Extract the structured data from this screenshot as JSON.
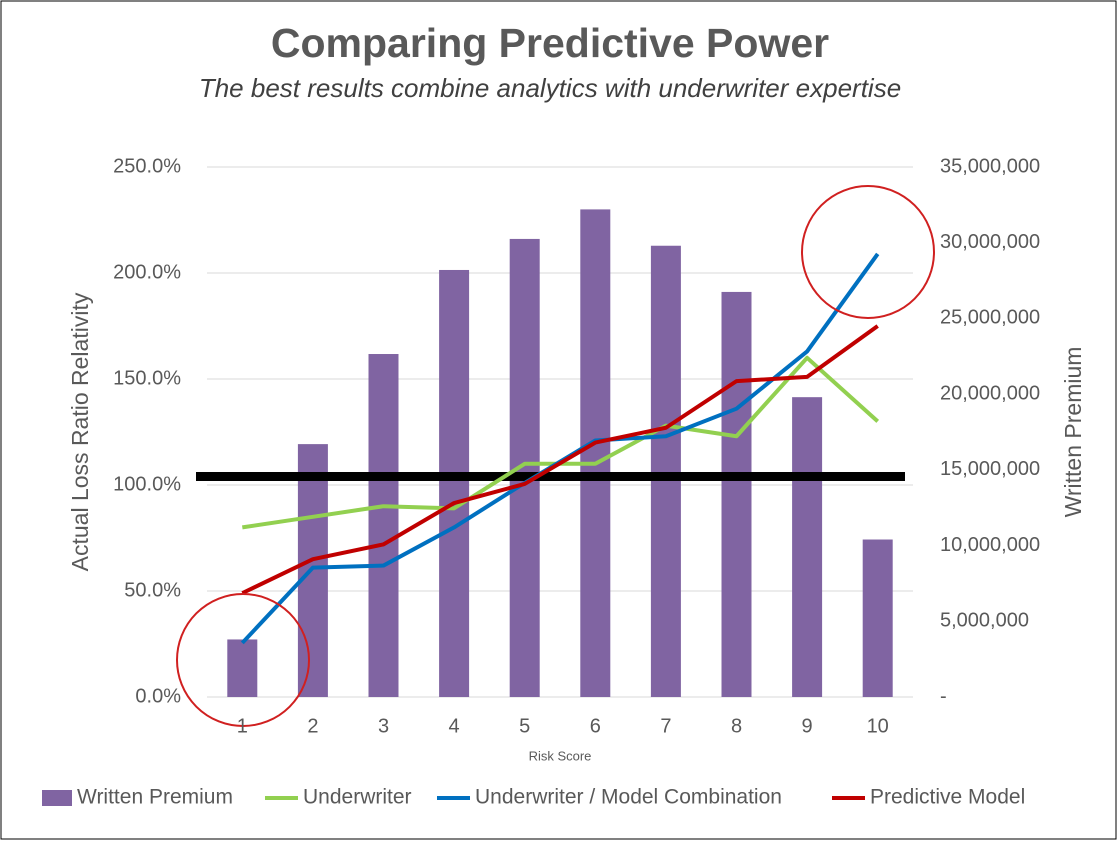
{
  "chart_data": {
    "type": "bar",
    "title": "Comparing Predictive Power",
    "subtitle": "The best results combine analytics with underwriter expertise",
    "x_label": "Risk Score",
    "y_label": "Actual Loss Ratio Relativity",
    "y2_label": "Written Premium",
    "categories": [
      "1",
      "2",
      "3",
      "4",
      "5",
      "6",
      "7",
      "8",
      "9",
      "10"
    ],
    "ylim": [
      0,
      250
    ],
    "yticks": [
      {
        "value": 0,
        "label": "0.0%"
      },
      {
        "value": 50,
        "label": "50.0%"
      },
      {
        "value": 100,
        "label": "100.0%"
      },
      {
        "value": 150,
        "label": "150.0%"
      },
      {
        "value": 200,
        "label": "200.0%"
      },
      {
        "value": 250,
        "label": "250.0%"
      }
    ],
    "y2lim": [
      0,
      35000000
    ],
    "y2ticks": [
      {
        "value": 0,
        "label": "-"
      },
      {
        "value": 5000000,
        "label": "5,000,000"
      },
      {
        "value": 10000000,
        "label": "10,000,000"
      },
      {
        "value": 15000000,
        "label": "15,000,000"
      },
      {
        "value": 20000000,
        "label": "20,000,000"
      },
      {
        "value": 25000000,
        "label": "25,000,000"
      },
      {
        "value": 30000000,
        "label": "30,000,000"
      },
      {
        "value": 35000000,
        "label": "35,000,000"
      }
    ],
    "grid": true,
    "reference_line": 104,
    "reference_color": "#000000",
    "series": [
      {
        "name": "Written Premium",
        "type": "bar",
        "axis": "y2",
        "color": "#8064a2",
        "values": [
          3800000,
          16700000,
          22650000,
          28200000,
          30250000,
          32200000,
          29800000,
          26750000,
          19800000,
          10400000
        ]
      },
      {
        "name": "Underwriter",
        "type": "line",
        "color": "#92d050",
        "values": [
          80,
          85,
          90,
          89,
          110,
          110,
          128,
          123,
          160,
          130
        ]
      },
      {
        "name": "Underwriter / Model Combination",
        "type": "line",
        "color": "#0070c0",
        "values": [
          25.5,
          61,
          62,
          80,
          101,
          121,
          123,
          136,
          163,
          209
        ]
      },
      {
        "name": "Predictive Model",
        "type": "line",
        "color": "#c00000",
        "values": [
          49,
          65,
          72,
          91.5,
          100.5,
          120,
          127,
          149,
          151,
          175
        ]
      }
    ]
  }
}
